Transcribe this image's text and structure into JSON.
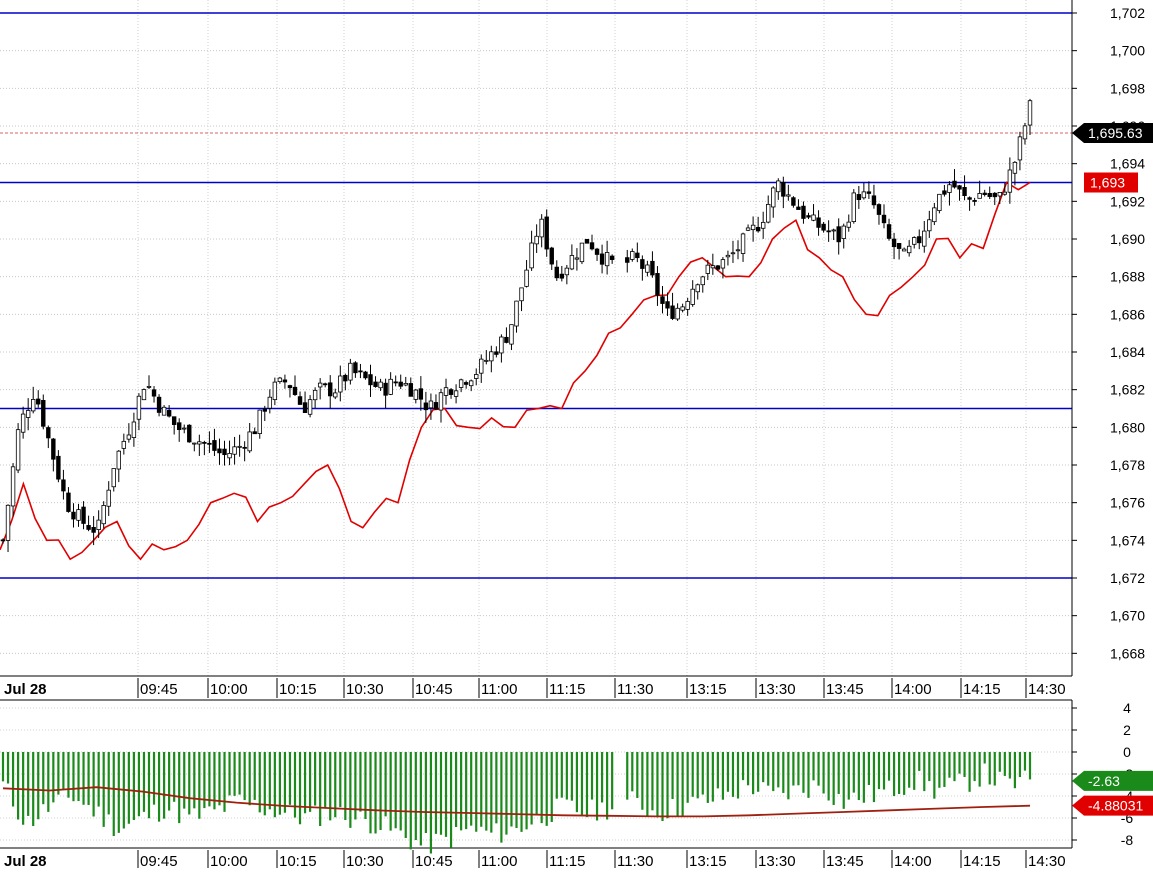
{
  "chart_data": [
    {
      "type": "candlestick",
      "title": "",
      "xlabel": "",
      "ylabel": "",
      "ylim": [
        1666,
        1703
      ],
      "date_label": "Jul 28",
      "x_ticks": [
        "09:45",
        "10:00",
        "10:15",
        "10:30",
        "10:45",
        "11:00",
        "11:15",
        "11:30",
        "13:15",
        "13:30",
        "13:45",
        "14:00",
        "14:15",
        "14:30"
      ],
      "y_ticks": [
        1668,
        1670,
        1672,
        1674,
        1676,
        1678,
        1680,
        1682,
        1684,
        1686,
        1688,
        1690,
        1692,
        1694,
        1696,
        1698,
        1700,
        1702
      ],
      "y_tick_labels": [
        "1,668",
        "1,670",
        "1,672",
        "1,674",
        "1,676",
        "1,678",
        "1,680",
        "1,682",
        "1,684",
        "1,686",
        "1,688",
        "1,690",
        "1,692",
        "1,694",
        "1,696",
        "1,698",
        "1,700",
        "1,702"
      ],
      "grid": true,
      "horizontal_lines": [
        1702,
        1693,
        1681,
        1672
      ],
      "horizontal_line_color": "#0000cc",
      "last_price": 1695.63,
      "last_price_label": "1,695.63",
      "last_price_color": "#000000",
      "red_line_label": "1,693",
      "red_line_color": "#e00000",
      "price_path": [
        1674,
        1680,
        1682,
        1679,
        1676,
        1675,
        1674.5,
        1678,
        1680,
        1682.5,
        1681,
        1680,
        1679.5,
        1679,
        1678.5,
        1679,
        1680,
        1682,
        1682.5,
        1681,
        1682,
        1682,
        1683,
        1682.5,
        1682,
        1682.5,
        1682,
        1681,
        1682,
        1682.5,
        1683,
        1684,
        1685,
        1688,
        1691,
        1688,
        1689,
        1690,
        1689,
        1688.5,
        1689,
        1688,
        1686,
        1686.5,
        1688,
        1688.5,
        1689,
        1690,
        1691,
        1693,
        1692,
        1691,
        1690.5,
        1690,
        1692.5,
        1692,
        1690,
        1689,
        1690,
        1692,
        1693,
        1692,
        1692.5,
        1692,
        1694,
        1697
      ],
      "red_path": [
        1673.5,
        1677,
        1674,
        1673,
        1674,
        1675,
        1673,
        1673.5,
        1674,
        1676,
        1676.5,
        1675,
        1676,
        1677,
        1678,
        1675,
        1675.5,
        1676,
        1680,
        1681,
        1680,
        1680.5,
        1680,
        1681,
        1681,
        1683,
        1685,
        1686,
        1687,
        1688,
        1689,
        1688,
        1688,
        1690,
        1691,
        1689,
        1688,
        1686,
        1687,
        1688,
        1690,
        1689,
        1689.5,
        1693,
        1693
      ],
      "candle_up_color": "#ffffff",
      "candle_down_color": "#000000"
    },
    {
      "type": "bar",
      "title": "",
      "ylim": [
        -9,
        5
      ],
      "y_ticks": [
        4,
        2,
        0,
        -2,
        -4,
        -6,
        -8
      ],
      "y_tick_labels": [
        "4",
        "2",
        "0",
        "-2",
        "-4",
        "-6",
        "-8"
      ],
      "series": [
        {
          "color": "#1a8a1a",
          "current_label": "-2.63"
        },
        {
          "color": "#e00000",
          "current_label": "-4.88031"
        }
      ],
      "bar_profile": [
        -3,
        -6.5,
        -5,
        -4,
        -5.5,
        -7,
        -6,
        -5,
        -6,
        -5.5,
        -4.5,
        -5,
        -5.5,
        -6,
        -5.5,
        -6,
        -6.5,
        -7.5,
        -8.5,
        -8,
        -7,
        -7.5,
        -7,
        -6,
        -5,
        -5.5,
        -5,
        -4.5,
        -5.5,
        -5,
        -4.5,
        -4,
        -3,
        -4,
        -3.5,
        -3,
        -4.5,
        -4,
        -3.5,
        -2.5,
        -3.5,
        -3,
        -2,
        -3,
        -2.63
      ],
      "signal_path": [
        -3.3,
        -3.5,
        -3.2,
        -3.6,
        -4.2,
        -4.6,
        -4.9,
        -5.1,
        -5.3,
        -5.45,
        -5.55,
        -5.65,
        -5.75,
        -5.8,
        -5.85,
        -5.85,
        -5.75,
        -5.6,
        -5.45,
        -5.3,
        -5.15,
        -5.0,
        -4.88
      ]
    }
  ]
}
